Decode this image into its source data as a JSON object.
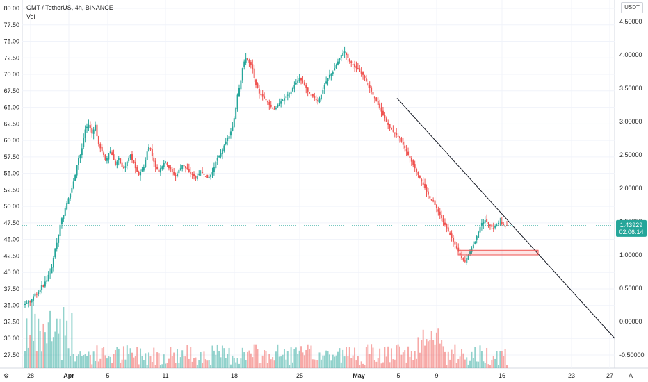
{
  "chart_data": {
    "type": "candlestick",
    "title": "GMT / TetherUS, 4h, BINANCE",
    "volume_label": "Vol",
    "currency_unit": "USDT",
    "log_scale_button": "A",
    "left_axis": {
      "ticks": [
        "80.00",
        "77.50",
        "75.00",
        "72.50",
        "70.00",
        "67.50",
        "65.00",
        "62.50",
        "60.00",
        "57.50",
        "55.00",
        "52.50",
        "50.00",
        "47.50",
        "45.00",
        "42.50",
        "40.00",
        "37.50",
        "35.00",
        "32.50",
        "30.00",
        "27.50"
      ],
      "range": [
        25.3,
        80.6
      ]
    },
    "right_axis": {
      "ticks": [
        "4.50000",
        "4.00000",
        "3.50000",
        "3.00000",
        "2.50000",
        "2.00000",
        "1.50000",
        "1.00000",
        "0.50000",
        "0.00000",
        "-0.50000"
      ],
      "range": [
        -0.74,
        4.67
      ]
    },
    "x_axis": {
      "ticks": [
        "28",
        "Apr",
        "5",
        "11",
        "18",
        "25",
        "May",
        "5",
        "9",
        "16",
        "23",
        "27"
      ]
    },
    "last_price": "1.43929",
    "countdown": "02:06:14",
    "colors": {
      "up": "#26a69a",
      "down": "#ef5350",
      "grid": "#f0f3fa",
      "trendline": "#131722",
      "badge": "#26a69a"
    },
    "series_close": [
      0.27,
      0.28,
      0.3,
      0.29,
      0.33,
      0.38,
      0.42,
      0.4,
      0.45,
      0.48,
      0.55,
      0.52,
      0.6,
      0.62,
      0.7,
      0.72,
      0.82,
      0.95,
      1.1,
      1.18,
      1.3,
      1.45,
      1.55,
      1.6,
      1.7,
      1.78,
      1.85,
      1.92,
      2.0,
      2.1,
      2.2,
      2.35,
      2.45,
      2.5,
      2.6,
      2.75,
      2.88,
      2.92,
      2.95,
      2.9,
      2.82,
      2.88,
      2.95,
      2.78,
      2.66,
      2.6,
      2.55,
      2.5,
      2.42,
      2.45,
      2.52,
      2.55,
      2.5,
      2.42,
      2.35,
      2.4,
      2.45,
      2.38,
      2.32,
      2.3,
      2.33,
      2.4,
      2.45,
      2.5,
      2.42,
      2.38,
      2.3,
      2.25,
      2.2,
      2.25,
      2.28,
      2.32,
      2.42,
      2.55,
      2.62,
      2.58,
      2.48,
      2.4,
      2.32,
      2.28,
      2.25,
      2.3,
      2.33,
      2.38,
      2.4,
      2.35,
      2.3,
      2.28,
      2.25,
      2.2,
      2.18,
      2.22,
      2.27,
      2.3,
      2.35,
      2.33,
      2.3,
      2.28,
      2.25,
      2.22,
      2.2,
      2.18,
      2.15,
      2.18,
      2.22,
      2.25,
      2.23,
      2.2,
      2.18,
      2.15,
      2.17,
      2.2,
      2.25,
      2.32,
      2.4,
      2.45,
      2.48,
      2.52,
      2.58,
      2.64,
      2.7,
      2.75,
      2.78,
      2.85,
      2.92,
      3.05,
      3.2,
      3.4,
      3.5,
      3.62,
      3.8,
      3.9,
      3.95,
      3.92,
      3.88,
      3.85,
      3.78,
      3.65,
      3.55,
      3.5,
      3.42,
      3.4,
      3.38,
      3.35,
      3.32,
      3.3,
      3.25,
      3.22,
      3.2,
      3.18,
      3.2,
      3.25,
      3.28,
      3.3,
      3.32,
      3.35,
      3.38,
      3.4,
      3.42,
      3.45,
      3.5,
      3.55,
      3.58,
      3.62,
      3.65,
      3.62,
      3.6,
      3.55,
      3.5,
      3.45,
      3.42,
      3.4,
      3.38,
      3.35,
      3.32,
      3.3,
      3.35,
      3.4,
      3.48,
      3.55,
      3.6,
      3.65,
      3.7,
      3.72,
      3.75,
      3.8,
      3.85,
      3.9,
      3.95,
      4.0,
      4.02,
      4.05,
      4.0,
      3.95,
      3.9,
      3.88,
      3.85,
      3.82,
      3.8,
      3.78,
      3.75,
      3.72,
      3.7,
      3.65,
      3.6,
      3.55,
      3.5,
      3.45,
      3.4,
      3.35,
      3.3,
      3.25,
      3.2,
      3.15,
      3.1,
      3.05,
      3.0,
      2.95,
      2.9,
      2.88,
      2.85,
      2.82,
      2.8,
      2.78,
      2.75,
      2.7,
      2.65,
      2.6,
      2.55,
      2.5,
      2.45,
      2.4,
      2.35,
      2.3,
      2.25,
      2.2,
      2.15,
      2.1,
      2.05,
      2.0,
      1.95,
      1.9,
      1.85,
      1.82,
      1.8,
      1.75,
      1.7,
      1.65,
      1.6,
      1.55,
      1.5,
      1.45,
      1.4,
      1.35,
      1.3,
      1.25,
      1.2,
      1.15,
      1.1,
      1.05,
      1.0,
      0.95,
      0.92,
      0.9,
      0.95,
      1.0,
      1.05,
      1.1,
      1.15,
      1.2,
      1.28,
      1.35,
      1.42,
      1.48,
      1.5,
      1.52,
      1.5,
      1.47,
      1.45,
      1.42,
      1.4,
      1.43,
      1.45,
      1.48,
      1.5,
      1.47,
      1.45,
      1.43,
      1.44
    ],
    "trendline": {
      "from": [
        "5",
        3.35
      ],
      "to_edge": -0.25
    },
    "support_zone": {
      "from": "12",
      "to": "20",
      "low": 1.0,
      "high": 1.07
    }
  }
}
